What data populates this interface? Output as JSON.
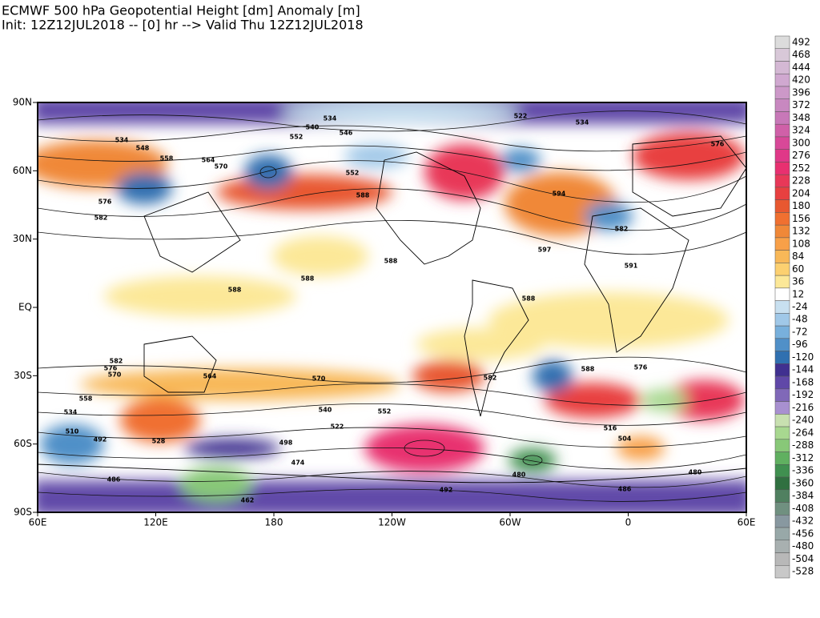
{
  "header": {
    "title": "ECMWF 500 hPa Geopotential Height [dm] Anomaly [m]",
    "subtitle": "Init: 12Z12JUL2018 -- [0] hr --> Valid Thu 12Z12JUL2018"
  },
  "map": {
    "lat_labels": [
      "90N",
      "60N",
      "30N",
      "EQ",
      "30S",
      "60S",
      "90S"
    ],
    "lon_labels": [
      "60E",
      "120E",
      "180",
      "120W",
      "60W",
      "0",
      "60E"
    ],
    "contour_labels": [
      "534",
      "540",
      "546",
      "552",
      "522",
      "534",
      "576",
      "534",
      "548",
      "558",
      "564",
      "570",
      "552",
      "576",
      "588",
      "594",
      "582",
      "582",
      "597",
      "591",
      "588",
      "588",
      "588",
      "588",
      "582",
      "576",
      "570",
      "564",
      "558",
      "534",
      "510",
      "492",
      "528",
      "552",
      "540",
      "522",
      "516",
      "504",
      "498",
      "492",
      "486",
      "480",
      "474",
      "462",
      "486",
      "480",
      "588",
      "576",
      "570",
      "582"
    ]
  },
  "colorbar": {
    "levels": [
      "492",
      "468",
      "444",
      "420",
      "396",
      "372",
      "348",
      "324",
      "300",
      "276",
      "252",
      "228",
      "204",
      "180",
      "156",
      "132",
      "108",
      "84",
      "60",
      "36",
      "12",
      "-24",
      "-48",
      "-72",
      "-96",
      "-120",
      "-144",
      "-168",
      "-192",
      "-216",
      "-240",
      "-264",
      "-288",
      "-312",
      "-336",
      "-360",
      "-384",
      "-408",
      "-432",
      "-456",
      "-480",
      "-504",
      "-528"
    ],
    "colors": [
      "#dcdcdc",
      "#d8c8d8",
      "#d4b8d4",
      "#d0a8d0",
      "#cc98c8",
      "#c888c0",
      "#c878b8",
      "#d060a8",
      "#d84898",
      "#e03888",
      "#e83070",
      "#e83858",
      "#e84040",
      "#e85830",
      "#f07030",
      "#f08838",
      "#f8a048",
      "#f8b858",
      "#fcd070",
      "#fce898",
      "#ffffff",
      "#c8e0f0",
      "#a0c8e8",
      "#78b0dc",
      "#5090c8",
      "#3070b0",
      "#403090",
      "#6048a8",
      "#8068b8",
      "#a890d0",
      "#c8e0b0",
      "#a8d890",
      "#88c878",
      "#60b060",
      "#409050",
      "#307040",
      "#508060",
      "#709080",
      "#8898a0",
      "#98a8a8",
      "#a8b0b0",
      "#b8b8b8",
      "#c8c8c8"
    ]
  }
}
